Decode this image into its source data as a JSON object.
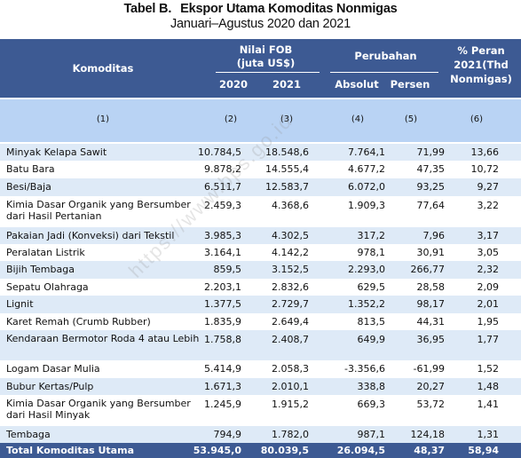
{
  "title": {
    "table_label": "Tabel B.",
    "title": "Ekspor Utama Komoditas Nonmigas",
    "subtitle": "Januari–Agustus 2020 dan 2021"
  },
  "header": {
    "komoditas": "Komoditas",
    "nilai_fob_1": "Nilai FOB",
    "nilai_fob_2": "(juta US$)",
    "perubahan": "Perubahan",
    "peran_1": "% Peran",
    "peran_2": "2021(Thd",
    "peran_3": "Nonmigas)",
    "y2020": "2020",
    "y2021": "2021",
    "absolut": "Absolut",
    "persen": "Persen"
  },
  "index_row": [
    "(1)",
    "(2)",
    "(3)",
    "(4)",
    "(5)",
    "(6)"
  ],
  "rows": [
    {
      "name": "Minyak Kelapa Sawit",
      "v2020": "10.784,5",
      "v2021": "18.548,6",
      "abs": "7.764,1",
      "pct": "71,99",
      "peran": "13,66"
    },
    {
      "name": "Batu Bara",
      "v2020": "9.878,2",
      "v2021": "14.555,4",
      "abs": "4.677,2",
      "pct": "47,35",
      "peran": "10,72"
    },
    {
      "name": "Besi/Baja",
      "v2020": "6.511,7",
      "v2021": "12.583,7",
      "abs": "6.072,0",
      "pct": "93,25",
      "peran": "9,27"
    },
    {
      "name": "Kimia Dasar Organik yang Bersumber dari Hasil Pertanian",
      "v2020": "2.459,3",
      "v2021": "4.368,6",
      "abs": "1.909,3",
      "pct": "77,64",
      "peran": "3,22"
    },
    {
      "name": "Pakaian Jadi (Konveksi) dari Tekstil",
      "v2020": "3.985,3",
      "v2021": "4.302,5",
      "abs": "317,2",
      "pct": "7,96",
      "peran": "3,17"
    },
    {
      "name": "Peralatan Listrik",
      "v2020": "3.164,1",
      "v2021": "4.142,2",
      "abs": "978,1",
      "pct": "30,91",
      "peran": "3,05"
    },
    {
      "name": "Bijih Tembaga",
      "v2020": "859,5",
      "v2021": "3.152,5",
      "abs": "2.293,0",
      "pct": "266,77",
      "peran": "2,32"
    },
    {
      "name": "Sepatu Olahraga",
      "v2020": "2.203,1",
      "v2021": "2.832,6",
      "abs": "629,5",
      "pct": "28,58",
      "peran": "2,09"
    },
    {
      "name": "Lignit",
      "v2020": "1.377,5",
      "v2021": "2.729,7",
      "abs": "1.352,2",
      "pct": "98,17",
      "peran": "2,01"
    },
    {
      "name": "Karet Remah (Crumb Rubber)",
      "v2020": "1.835,9",
      "v2021": "2.649,4",
      "abs": "813,5",
      "pct": "44,31",
      "peran": "1,95"
    },
    {
      "name": "Kendaraan Bermotor Roda 4 atau Lebih",
      "v2020": "1.758,8",
      "v2021": "2.408,7",
      "abs": "649,9",
      "pct": "36,95",
      "peran": "1,77"
    },
    {
      "name": "Logam Dasar Mulia",
      "v2020": "5.414,9",
      "v2021": "2.058,3",
      "abs": "-3.356,6",
      "pct": "-61,99",
      "peran": "1,52"
    },
    {
      "name": "Bubur Kertas/Pulp",
      "v2020": "1.671,3",
      "v2021": "2.010,1",
      "abs": "338,8",
      "pct": "20,27",
      "peran": "1,48"
    },
    {
      "name": "Kimia Dasar Organik yang Bersumber dari Hasil Minyak",
      "v2020": "1.245,9",
      "v2021": "1.915,2",
      "abs": "669,3",
      "pct": "53,72",
      "peran": "1,41"
    },
    {
      "name": "Tembaga",
      "v2020": "794,9",
      "v2021": "1.782,0",
      "abs": "987,1",
      "pct": "124,18",
      "peran": "1,31"
    }
  ],
  "total": {
    "name": "Total Komoditas Utama",
    "v2020": "53.945,0",
    "v2021": "80.039,5",
    "abs": "26.094,5",
    "pct": "48,37",
    "peran": "58,94"
  },
  "watermark": "https://www.bps.go.id",
  "colors": {
    "header_bg": "#3d5a93",
    "index_bg": "#b9d3f4",
    "alt_row_bg": "#deeaf7"
  }
}
